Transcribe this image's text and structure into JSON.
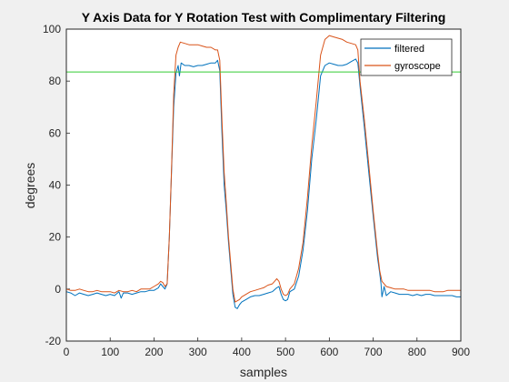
{
  "chart_data": {
    "type": "line",
    "title": "Y Axis Data for Y Rotation Test with Complimentary Filtering",
    "xlabel": "samples",
    "ylabel": "degrees",
    "xlim": [
      0,
      900
    ],
    "ylim": [
      -20,
      100
    ],
    "xticks": [
      0,
      100,
      200,
      300,
      400,
      500,
      600,
      700,
      800,
      900
    ],
    "yticks": [
      -20,
      0,
      20,
      40,
      60,
      80,
      100
    ],
    "grid": false,
    "legend_position": "top-right",
    "reference_line": {
      "y": 83.5,
      "color": "#33cc33"
    },
    "series": [
      {
        "name": "filtered",
        "color": "#0072bd",
        "points": [
          [
            0,
            -1
          ],
          [
            10,
            -1.5
          ],
          [
            20,
            -2.5
          ],
          [
            30,
            -1.5
          ],
          [
            40,
            -2
          ],
          [
            50,
            -2.5
          ],
          [
            60,
            -2
          ],
          [
            70,
            -1.5
          ],
          [
            80,
            -2
          ],
          [
            90,
            -2.5
          ],
          [
            100,
            -2
          ],
          [
            110,
            -2.5
          ],
          [
            120,
            -1
          ],
          [
            125,
            -3.5
          ],
          [
            130,
            -1.5
          ],
          [
            140,
            -1.5
          ],
          [
            150,
            -2
          ],
          [
            160,
            -1.5
          ],
          [
            170,
            -1
          ],
          [
            180,
            -1
          ],
          [
            190,
            -0.5
          ],
          [
            200,
            -0.5
          ],
          [
            210,
            0.5
          ],
          [
            215,
            2
          ],
          [
            220,
            1
          ],
          [
            225,
            0
          ],
          [
            230,
            2
          ],
          [
            235,
            20
          ],
          [
            240,
            45
          ],
          [
            245,
            70
          ],
          [
            250,
            83
          ],
          [
            255,
            86
          ],
          [
            258,
            82
          ],
          [
            262,
            87
          ],
          [
            270,
            86
          ],
          [
            280,
            86
          ],
          [
            290,
            85.5
          ],
          [
            300,
            86
          ],
          [
            310,
            86
          ],
          [
            320,
            86.5
          ],
          [
            330,
            87
          ],
          [
            340,
            87
          ],
          [
            345,
            88
          ],
          [
            350,
            84
          ],
          [
            355,
            60
          ],
          [
            360,
            40
          ],
          [
            365,
            30
          ],
          [
            370,
            18
          ],
          [
            375,
            8
          ],
          [
            380,
            -2
          ],
          [
            385,
            -7
          ],
          [
            390,
            -7.5
          ],
          [
            395,
            -6
          ],
          [
            400,
            -5
          ],
          [
            410,
            -4
          ],
          [
            420,
            -3
          ],
          [
            430,
            -2.5
          ],
          [
            440,
            -2.5
          ],
          [
            450,
            -2
          ],
          [
            460,
            -1.5
          ],
          [
            470,
            -1
          ],
          [
            480,
            0.5
          ],
          [
            485,
            1
          ],
          [
            490,
            -2
          ],
          [
            495,
            -4
          ],
          [
            500,
            -4.5
          ],
          [
            505,
            -4
          ],
          [
            510,
            -1
          ],
          [
            520,
            0
          ],
          [
            530,
            5
          ],
          [
            540,
            15
          ],
          [
            550,
            30
          ],
          [
            560,
            50
          ],
          [
            570,
            65
          ],
          [
            580,
            82
          ],
          [
            585,
            84
          ],
          [
            590,
            86
          ],
          [
            600,
            87
          ],
          [
            610,
            86.5
          ],
          [
            620,
            86
          ],
          [
            630,
            86
          ],
          [
            640,
            86.5
          ],
          [
            650,
            87.5
          ],
          [
            655,
            88
          ],
          [
            660,
            88.5
          ],
          [
            665,
            87
          ],
          [
            670,
            78
          ],
          [
            680,
            62
          ],
          [
            690,
            45
          ],
          [
            700,
            28
          ],
          [
            710,
            12
          ],
          [
            715,
            6
          ],
          [
            718,
            2
          ],
          [
            720,
            -3
          ],
          [
            725,
            1
          ],
          [
            730,
            -2.5
          ],
          [
            740,
            -1
          ],
          [
            750,
            -1.5
          ],
          [
            760,
            -2
          ],
          [
            770,
            -2
          ],
          [
            780,
            -2
          ],
          [
            790,
            -2.5
          ],
          [
            800,
            -2
          ],
          [
            810,
            -2.5
          ],
          [
            820,
            -2
          ],
          [
            830,
            -2
          ],
          [
            840,
            -2.5
          ],
          [
            850,
            -2.5
          ],
          [
            860,
            -2.5
          ],
          [
            870,
            -2.5
          ],
          [
            880,
            -2.5
          ],
          [
            890,
            -3
          ],
          [
            900,
            -3
          ]
        ]
      },
      {
        "name": "gyroscope",
        "color": "#d95319",
        "points": [
          [
            0,
            0
          ],
          [
            10,
            -0.5
          ],
          [
            20,
            -0.5
          ],
          [
            30,
            0
          ],
          [
            40,
            -0.5
          ],
          [
            50,
            -1
          ],
          [
            60,
            -1
          ],
          [
            70,
            -0.5
          ],
          [
            80,
            -1
          ],
          [
            90,
            -1
          ],
          [
            100,
            -1
          ],
          [
            110,
            -1.5
          ],
          [
            120,
            -0.5
          ],
          [
            130,
            -1
          ],
          [
            140,
            -1
          ],
          [
            150,
            -0.5
          ],
          [
            160,
            -1
          ],
          [
            170,
            0
          ],
          [
            180,
            0
          ],
          [
            190,
            0
          ],
          [
            200,
            1
          ],
          [
            210,
            2
          ],
          [
            215,
            3
          ],
          [
            220,
            2.5
          ],
          [
            225,
            1
          ],
          [
            230,
            2
          ],
          [
            235,
            20
          ],
          [
            240,
            46
          ],
          [
            245,
            75
          ],
          [
            250,
            90
          ],
          [
            255,
            93
          ],
          [
            260,
            95
          ],
          [
            270,
            94.5
          ],
          [
            280,
            94
          ],
          [
            290,
            94
          ],
          [
            300,
            94
          ],
          [
            310,
            93.5
          ],
          [
            320,
            93
          ],
          [
            330,
            93
          ],
          [
            340,
            92
          ],
          [
            345,
            92
          ],
          [
            350,
            88
          ],
          [
            355,
            65
          ],
          [
            360,
            45
          ],
          [
            365,
            33
          ],
          [
            370,
            20
          ],
          [
            375,
            10
          ],
          [
            380,
            0
          ],
          [
            385,
            -5
          ],
          [
            390,
            -4.5
          ],
          [
            395,
            -4
          ],
          [
            400,
            -3
          ],
          [
            410,
            -2
          ],
          [
            420,
            -1
          ],
          [
            430,
            -0.5
          ],
          [
            440,
            0
          ],
          [
            450,
            0.5
          ],
          [
            460,
            1.5
          ],
          [
            470,
            2
          ],
          [
            475,
            3
          ],
          [
            480,
            4
          ],
          [
            485,
            3
          ],
          [
            490,
            0
          ],
          [
            495,
            -2
          ],
          [
            500,
            -2.5
          ],
          [
            505,
            -2
          ],
          [
            510,
            0
          ],
          [
            520,
            2
          ],
          [
            530,
            8
          ],
          [
            540,
            18
          ],
          [
            550,
            35
          ],
          [
            560,
            55
          ],
          [
            570,
            72
          ],
          [
            580,
            90
          ],
          [
            590,
            96
          ],
          [
            600,
            97.5
          ],
          [
            610,
            97
          ],
          [
            620,
            96.5
          ],
          [
            630,
            96
          ],
          [
            640,
            95
          ],
          [
            650,
            94.5
          ],
          [
            660,
            94
          ],
          [
            665,
            92
          ],
          [
            670,
            80
          ],
          [
            680,
            65
          ],
          [
            690,
            48
          ],
          [
            700,
            30
          ],
          [
            710,
            14
          ],
          [
            715,
            7
          ],
          [
            720,
            3
          ],
          [
            725,
            2
          ],
          [
            730,
            1
          ],
          [
            740,
            0.5
          ],
          [
            750,
            0
          ],
          [
            760,
            0
          ],
          [
            770,
            0
          ],
          [
            780,
            -0.5
          ],
          [
            790,
            -0.5
          ],
          [
            800,
            -0.5
          ],
          [
            810,
            -0.5
          ],
          [
            820,
            -0.5
          ],
          [
            830,
            -0.5
          ],
          [
            840,
            -1
          ],
          [
            850,
            -1
          ],
          [
            860,
            -1
          ],
          [
            870,
            -0.5
          ],
          [
            880,
            -0.5
          ],
          [
            890,
            -0.5
          ],
          [
            900,
            -0.5
          ]
        ]
      }
    ]
  }
}
